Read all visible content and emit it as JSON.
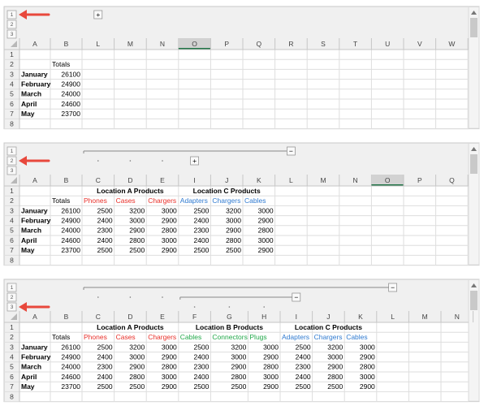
{
  "panels": [
    {
      "outline_levels": [
        1,
        2,
        3
      ],
      "outline_buttons": [
        "+"
      ],
      "selected_column": "O",
      "columns": [
        "A",
        "B",
        "L",
        "M",
        "N",
        "O",
        "P",
        "Q",
        "R",
        "S",
        "T",
        "U",
        "V",
        "W"
      ],
      "row_numbers": [
        1,
        2,
        3,
        4,
        5,
        6,
        7,
        8
      ],
      "rows": [
        [],
        [
          null,
          "Totals"
        ],
        [
          "January",
          26100
        ],
        [
          "February",
          24900
        ],
        [
          "March",
          24000
        ],
        [
          "April",
          24600
        ],
        [
          "May",
          23700
        ],
        []
      ]
    },
    {
      "outline_levels": [
        1,
        2,
        3
      ],
      "outline_buttons": [
        "−",
        "+"
      ],
      "selected_column": "O",
      "columns": [
        "A",
        "B",
        "C",
        "D",
        "E",
        "I",
        "J",
        "K",
        "L",
        "M",
        "N",
        "O",
        "P",
        "Q"
      ],
      "row_numbers": [
        1,
        2,
        3,
        4,
        5,
        6,
        7,
        8
      ],
      "row2_colors": [
        null,
        null,
        "#e8302a",
        "#e8302a",
        "#e8302a",
        "#2f7ad0",
        "#2f7ad0",
        "#2f7ad0"
      ],
      "rows": [
        [
          null,
          null,
          "Location A Products",
          null,
          null,
          "Location C Products"
        ],
        [
          null,
          "Totals",
          "Phones",
          "Cases",
          "Chargers",
          "Adapters",
          "Chargers",
          "Cables"
        ],
        [
          "January",
          26100,
          2500,
          3200,
          3000,
          2500,
          3200,
          3000
        ],
        [
          "February",
          24900,
          2400,
          3000,
          2900,
          2400,
          3000,
          2900
        ],
        [
          "March",
          24000,
          2300,
          2900,
          2800,
          2300,
          2900,
          2800
        ],
        [
          "April",
          24600,
          2400,
          2800,
          3000,
          2400,
          2800,
          3000
        ],
        [
          "May",
          23700,
          2500,
          2500,
          2900,
          2500,
          2500,
          2900
        ],
        []
      ]
    },
    {
      "outline_levels": [
        1,
        2,
        3
      ],
      "outline_buttons": [
        "−",
        "−"
      ],
      "columns": [
        "A",
        "B",
        "C",
        "D",
        "E",
        "F",
        "G",
        "H",
        "I",
        "J",
        "K",
        "L",
        "M",
        "N"
      ],
      "row_numbers": [
        1,
        2,
        3,
        4,
        5,
        6,
        7,
        8
      ],
      "row2_colors": [
        null,
        null,
        "#e8302a",
        "#e8302a",
        "#e8302a",
        "#22a84a",
        "#22a84a",
        "#22a84a",
        "#2f7ad0",
        "#2f7ad0",
        "#2f7ad0"
      ],
      "rows": [
        [
          null,
          null,
          "Location A Products",
          null,
          null,
          "Location B Products",
          null,
          null,
          "Location C Products"
        ],
        [
          null,
          "Totals",
          "Phones",
          "Cases",
          "Chargers",
          "Cables",
          "Connectors",
          "Plugs",
          "Adapters",
          "Chargers",
          "Cables"
        ],
        [
          "January",
          26100,
          2500,
          3200,
          3000,
          2500,
          3200,
          3000,
          2500,
          3200,
          3000
        ],
        [
          "February",
          24900,
          2400,
          3000,
          2900,
          2400,
          3000,
          2900,
          2400,
          3000,
          2900
        ],
        [
          "March",
          24000,
          2300,
          2900,
          2800,
          2300,
          2900,
          2800,
          2300,
          2900,
          2800
        ],
        [
          "April",
          24600,
          2400,
          2800,
          3000,
          2400,
          2800,
          3000,
          2400,
          2800,
          3000
        ],
        [
          "May",
          23700,
          2500,
          2500,
          2900,
          2500,
          2500,
          2900,
          2500,
          2500,
          2900
        ],
        []
      ]
    }
  ]
}
